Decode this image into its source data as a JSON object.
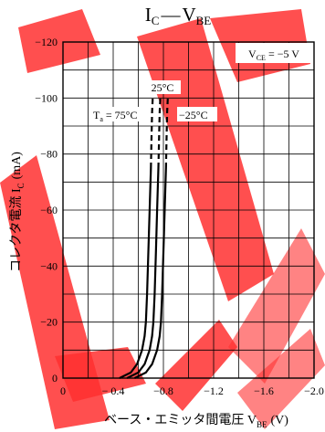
{
  "chart_data": {
    "type": "line",
    "title": {
      "main": "I",
      "main_sub": "C",
      "dash": "—",
      "tail": "V",
      "tail_sub": "BE"
    },
    "xlabel": {
      "main": "ベース・エミッタ間電圧 V",
      "sub": "BE",
      "unit": "(V)"
    },
    "ylabel": {
      "main": "コレクタ電流 I",
      "sub": "C",
      "unit": "(mA)"
    },
    "xlim": [
      0,
      -2.0
    ],
    "ylim": [
      0,
      -120
    ],
    "x_ticks": [
      0,
      -0.4,
      -0.8,
      -1.2,
      -1.6,
      -2.0
    ],
    "x_tick_labels": [
      "0",
      "− 0.4",
      "−0.8",
      "−1.2",
      "−1.6",
      "−2.0"
    ],
    "y_ticks": [
      0,
      -20,
      -40,
      -60,
      -80,
      -100,
      -120
    ],
    "y_tick_labels": [
      "0",
      "−20",
      "−40",
      "−60",
      "−80",
      "−100",
      "−120"
    ],
    "x_grid_step": -0.2,
    "y_grid_step": -10,
    "grid": true,
    "condition": {
      "main": "V",
      "sub": "CE",
      "rest": " = −5 V"
    },
    "series": [
      {
        "name": "T_a = 75°C",
        "solid": [
          [
            -0.45,
            0
          ],
          [
            -0.54,
            -2
          ],
          [
            -0.59,
            -5
          ],
          [
            -0.63,
            -10
          ],
          [
            -0.65,
            -15
          ],
          [
            -0.66,
            -20
          ],
          [
            -0.67,
            -30
          ],
          [
            -0.68,
            -45
          ],
          [
            -0.69,
            -60
          ],
          [
            -0.7,
            -75
          ]
        ],
        "dashed": [
          [
            -0.7,
            -75
          ],
          [
            -0.705,
            -85
          ],
          [
            -0.71,
            -95
          ],
          [
            -0.715,
            -100
          ]
        ]
      },
      {
        "name": "25°C",
        "solid": [
          [
            -0.51,
            0
          ],
          [
            -0.6,
            -2
          ],
          [
            -0.65,
            -5
          ],
          [
            -0.69,
            -10
          ],
          [
            -0.71,
            -15
          ],
          [
            -0.72,
            -20
          ],
          [
            -0.73,
            -30
          ],
          [
            -0.74,
            -45
          ],
          [
            -0.75,
            -60
          ],
          [
            -0.76,
            -75
          ]
        ],
        "dashed": [
          [
            -0.76,
            -75
          ],
          [
            -0.765,
            -85
          ],
          [
            -0.77,
            -95
          ],
          [
            -0.775,
            -100
          ]
        ]
      },
      {
        "name": "−25°C",
        "solid": [
          [
            -0.57,
            0
          ],
          [
            -0.66,
            -2
          ],
          [
            -0.71,
            -5
          ],
          [
            -0.75,
            -10
          ],
          [
            -0.77,
            -15
          ],
          [
            -0.78,
            -20
          ],
          [
            -0.79,
            -30
          ],
          [
            -0.8,
            -45
          ],
          [
            -0.81,
            -60
          ],
          [
            -0.82,
            -75
          ]
        ],
        "dashed": [
          [
            -0.82,
            -75
          ],
          [
            -0.825,
            -85
          ],
          [
            -0.83,
            -95
          ],
          [
            -0.835,
            -100
          ]
        ]
      }
    ],
    "labels": {
      "ta_main": "T",
      "ta_sub": "a",
      "ta_rest": " = 75°C",
      "t25": "25°C",
      "tm25": "−25°C"
    },
    "colors": {
      "line": "#000000",
      "grid": "#000000",
      "watermark": "#ff1a1a"
    }
  }
}
